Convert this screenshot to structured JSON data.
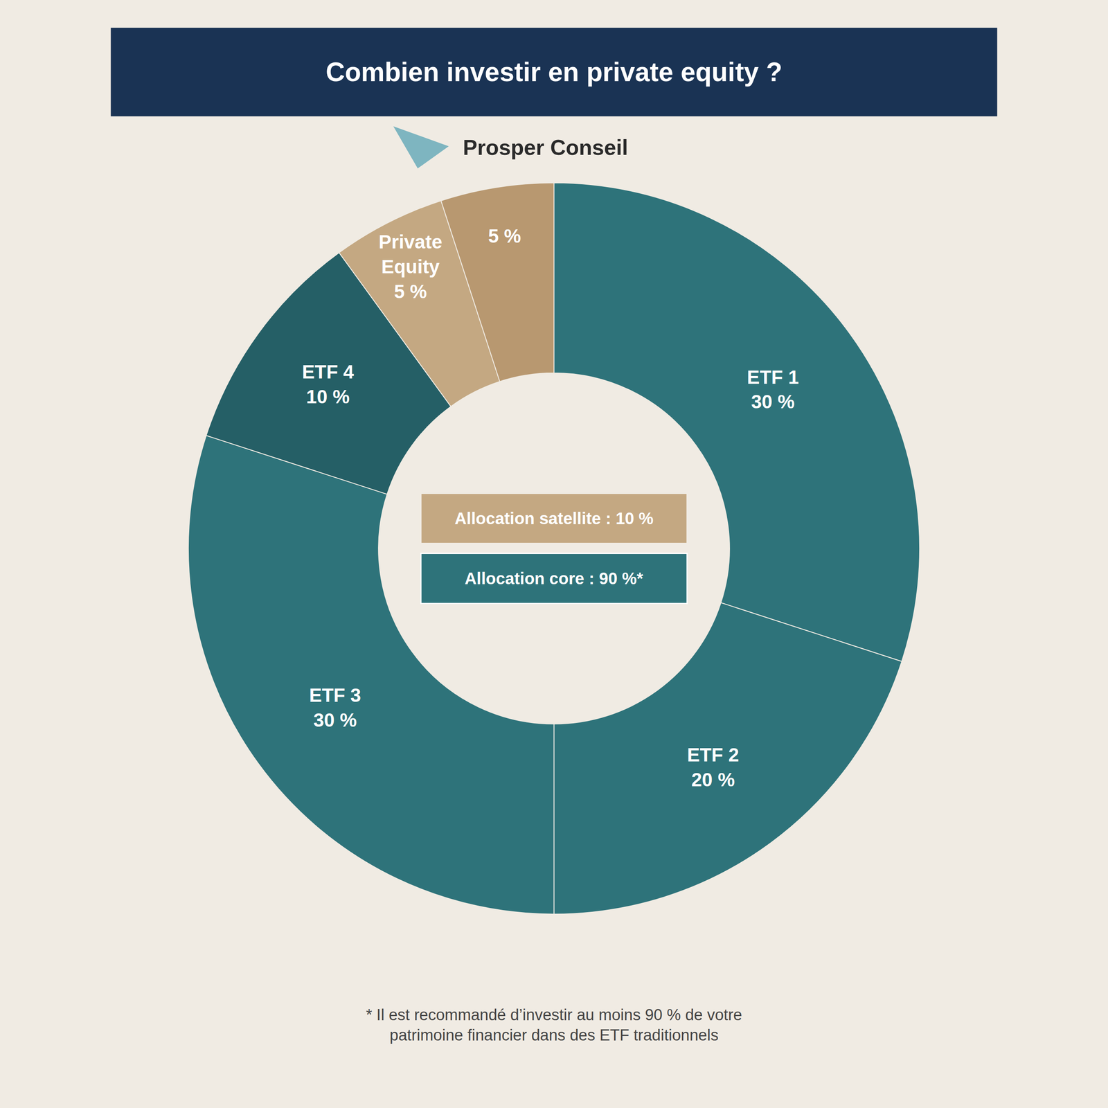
{
  "chart_data": {
    "type": "pie",
    "title": "Combien investir en private equity ?",
    "categories": [
      "ETF 1",
      "ETF 2",
      "ETF 3",
      "ETF 4",
      "Private\nEquity",
      null
    ],
    "values": [
      30,
      20,
      30,
      10,
      5,
      5
    ],
    "value_labels": [
      "30 %",
      "20 %",
      "30 %",
      "10 %",
      "5 %",
      "5 %"
    ],
    "colors": [
      "#2e737a",
      "#2e737a",
      "#2e737a",
      "#255f66",
      "#c4a882",
      "#b89870"
    ],
    "data_labels": true,
    "annotations": [
      "Prosper Conseil",
      "Allocation satellite : 10 %",
      "Allocation core : 90 %*",
      "* Il est recommandé d’investir au moins 90 % de votre\npatrimoine financier dans des ETF traditionnels"
    ]
  }
}
